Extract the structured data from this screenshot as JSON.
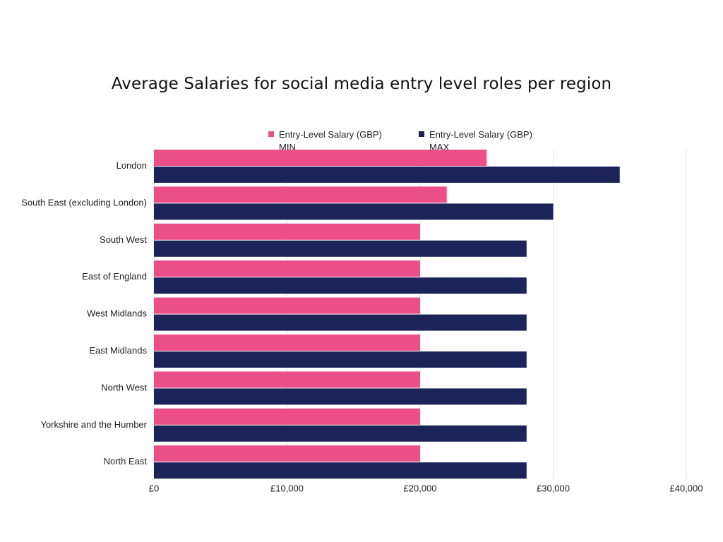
{
  "chart_data": {
    "type": "bar",
    "orientation": "horizontal",
    "title": "Average Salaries for social media entry level roles per region",
    "categories": [
      "London",
      "South East (excluding London)",
      "South West",
      "East of England",
      "West Midlands",
      "East Midlands",
      "North West",
      "Yorkshire and the Humber",
      "North East"
    ],
    "series": [
      {
        "name": "Entry-Level Salary (GBP) MIN",
        "label_line1": "Entry-Level Salary (GBP)",
        "label_line2": "MIN",
        "color": "#EC4E88",
        "values": [
          25000,
          22000,
          20000,
          20000,
          20000,
          20000,
          20000,
          20000,
          20000
        ]
      },
      {
        "name": "Entry-Level Salary (GBP) MAX",
        "label_line1": "Entry-Level Salary (GBP)",
        "label_line2": "MAX",
        "color": "#1B2359",
        "values": [
          35000,
          30000,
          28000,
          28000,
          28000,
          28000,
          28000,
          28000,
          28000
        ]
      }
    ],
    "xlim": [
      0,
      40000
    ],
    "x_ticks": [
      0,
      10000,
      20000,
      30000,
      40000
    ],
    "x_tick_labels": [
      "£0",
      "£10,000",
      "£20,000",
      "£30,000",
      "£40,000"
    ],
    "grid": true,
    "legend_position": "top"
  }
}
